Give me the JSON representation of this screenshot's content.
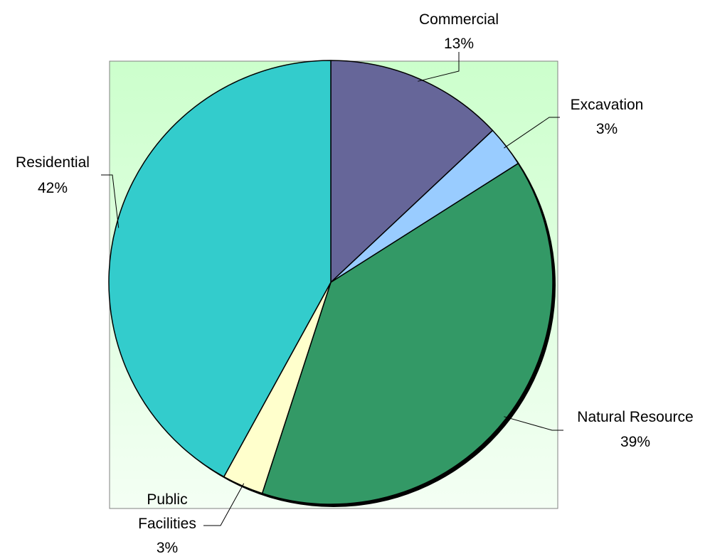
{
  "chart_data": {
    "type": "pie",
    "title": "",
    "legend": "none",
    "start_angle_deg": 0,
    "direction": "clockwise",
    "data_labels": "category-and-percent",
    "slices": [
      {
        "name": "Commercial",
        "value": 13,
        "label": "13%",
        "color": "#666699"
      },
      {
        "name": "Excavation",
        "value": 3,
        "label": "3%",
        "color": "#99CCFF"
      },
      {
        "name": "Natural Resource",
        "value": 39,
        "label": "39%",
        "color": "#339966"
      },
      {
        "name": "Public Facilities",
        "name_lines": [
          "Public",
          "Facilities"
        ],
        "value": 3,
        "label": "3%",
        "color": "#FFFFCC"
      },
      {
        "name": "Residential",
        "value": 42,
        "label": "42%",
        "color": "#33CCCC"
      }
    ],
    "plot_area_fill": [
      "#CCFFCC",
      "#F4FFF4"
    ]
  }
}
